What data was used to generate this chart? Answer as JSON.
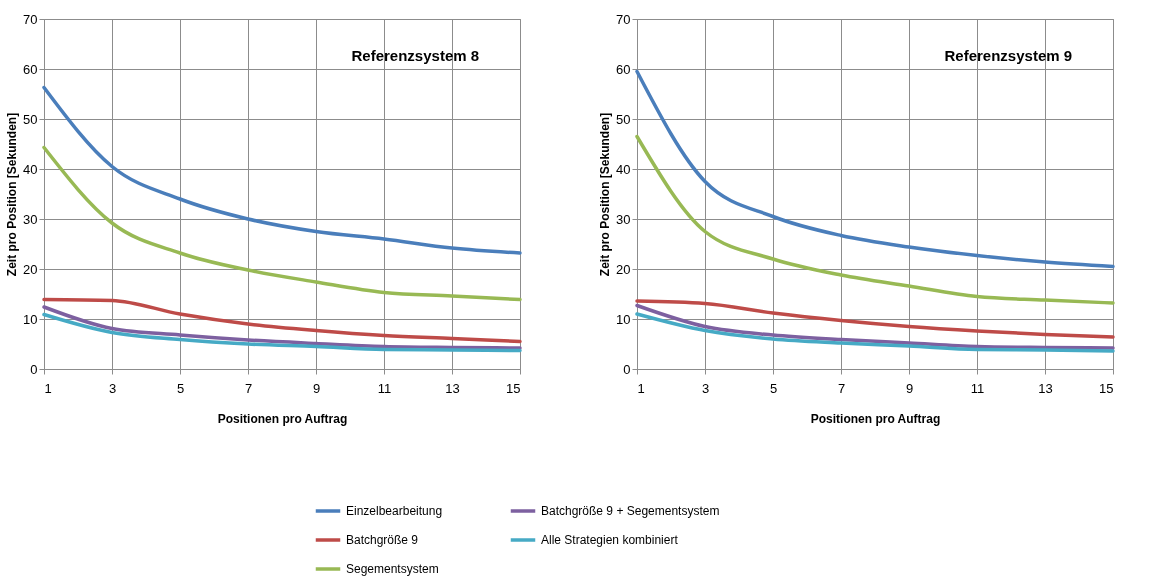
{
  "chart_data": [
    {
      "type": "line",
      "title": "Referenzsystem 8",
      "xlabel": "Positionen pro Auftrag",
      "ylabel": "Zeit pro Position [Sekunden]",
      "x": [
        1,
        3,
        5,
        7,
        9,
        11,
        13,
        15
      ],
      "xlim": [
        1,
        15
      ],
      "xticks": [
        1,
        3,
        5,
        7,
        9,
        11,
        13,
        15
      ],
      "ylim": [
        0,
        70
      ],
      "yticks": [
        0,
        10,
        20,
        30,
        40,
        50,
        60,
        70
      ],
      "grid": true,
      "legend": "bottom",
      "series": [
        {
          "name": "Einzelbearbeitung",
          "color": "#4a7ebb",
          "values": [
            56.3,
            40.5,
            34,
            30,
            27.5,
            26,
            24.2,
            23.2
          ]
        },
        {
          "name": "Batchgröße 9",
          "color": "#be4b48",
          "values": [
            13.9,
            13.7,
            11.0,
            9.0,
            7.7,
            6.7,
            6.1,
            5.5
          ]
        },
        {
          "name": "Segementsystem",
          "color": "#98b954",
          "values": [
            44.3,
            29.2,
            23.2,
            19.8,
            17.4,
            15.3,
            14.6,
            13.9
          ]
        },
        {
          "name": "Batchgröße 9 + Segementsystem",
          "color": "#7d60a0",
          "values": [
            12.4,
            8.1,
            6.8,
            5.8,
            5.1,
            4.5,
            4.3,
            4.2
          ]
        },
        {
          "name": "Alle Strategien kombiniert",
          "color": "#46aac5",
          "values": [
            10.9,
            7.3,
            5.9,
            5.0,
            4.5,
            3.9,
            3.8,
            3.7
          ]
        }
      ]
    },
    {
      "type": "line",
      "title": "Referenzsystem 9",
      "xlabel": "Positionen pro Auftrag",
      "ylabel": "Zeit pro Position [Sekunden]",
      "x": [
        1,
        3,
        5,
        7,
        9,
        11,
        13,
        15
      ],
      "xlim": [
        1,
        15
      ],
      "xticks": [
        1,
        3,
        5,
        7,
        9,
        11,
        13,
        15
      ],
      "ylim": [
        0,
        70
      ],
      "yticks": [
        0,
        10,
        20,
        30,
        40,
        50,
        60,
        70
      ],
      "grid": true,
      "legend": "bottom",
      "series": [
        {
          "name": "Einzelbearbeitung",
          "color": "#4a7ebb",
          "values": [
            59.5,
            37.5,
            30.5,
            26.7,
            24.4,
            22.7,
            21.4,
            20.5
          ]
        },
        {
          "name": "Batchgröße 9",
          "color": "#be4b48",
          "values": [
            13.6,
            13.1,
            11.2,
            9.7,
            8.5,
            7.6,
            6.9,
            6.4
          ]
        },
        {
          "name": "Segementsystem",
          "color": "#98b954",
          "values": [
            46.5,
            27.5,
            22.0,
            18.8,
            16.6,
            14.5,
            13.8,
            13.2
          ]
        },
        {
          "name": "Batchgröße 9 + Segementsystem",
          "color": "#7d60a0",
          "values": [
            12.7,
            8.5,
            6.8,
            5.9,
            5.2,
            4.5,
            4.3,
            4.2
          ]
        },
        {
          "name": "Alle Strategien kombiniert",
          "color": "#46aac5",
          "values": [
            11.0,
            7.7,
            6.0,
            5.2,
            4.6,
            3.9,
            3.8,
            3.6
          ]
        }
      ]
    }
  ]
}
